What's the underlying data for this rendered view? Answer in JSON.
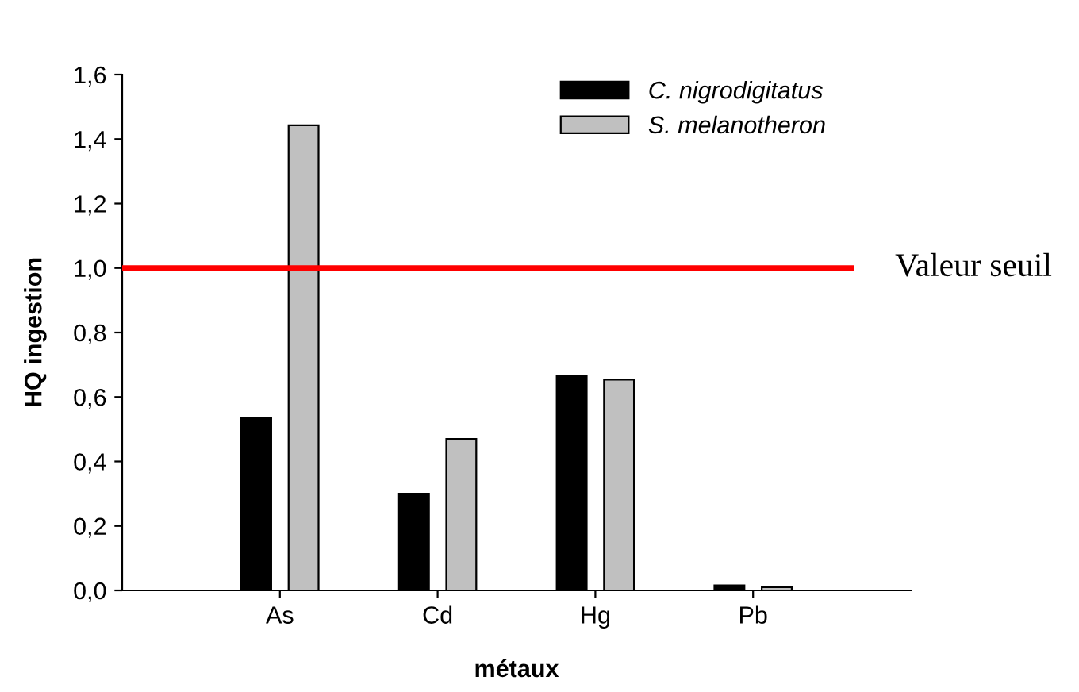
{
  "chart_data": {
    "type": "bar",
    "xlabel": "métaux",
    "ylabel": "HQ ingestion",
    "categories": [
      "As",
      "Cd",
      "Hg",
      "Pb"
    ],
    "series": [
      {
        "name": "C. nigrodigitatus",
        "color": "#000000",
        "values": [
          0.535,
          0.3,
          0.665,
          0.016
        ]
      },
      {
        "name": "S. melanotheron",
        "color": "#c0c0c0",
        "values": [
          1.443,
          0.47,
          0.654,
          0.01
        ]
      }
    ],
    "ylim": [
      0,
      1.6
    ],
    "yticks": [
      {
        "value": 0,
        "label": "0,0"
      },
      {
        "value": 0.2,
        "label": "0,2"
      },
      {
        "value": 0.4,
        "label": "0,4"
      },
      {
        "value": 0.6,
        "label": "0,6"
      },
      {
        "value": 0.8,
        "label": "0,8"
      },
      {
        "value": 1.0,
        "label": "1,0"
      },
      {
        "value": 1.2,
        "label": "1,2"
      },
      {
        "value": 1.4,
        "label": "1,4"
      },
      {
        "value": 1.6,
        "label": "1,6"
      }
    ],
    "ref_lines": [
      {
        "axis": "y",
        "value": 1.0,
        "label": "Valeur seuil",
        "color": "#ff0000"
      }
    ],
    "legend": "top right",
    "grid": false
  }
}
